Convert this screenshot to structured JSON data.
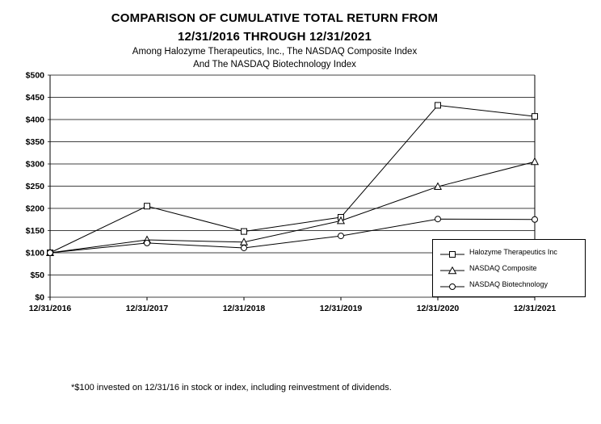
{
  "title": {
    "line1": "COMPARISON OF CUMULATIVE TOTAL RETURN FROM",
    "line2": "12/31/2016 THROUGH 12/31/2021",
    "line3": "Among Halozyme Therapeutics, Inc., The NASDAQ Composite Index",
    "line4": "And The NASDAQ Biotechnology Index"
  },
  "footnote": "*$100 invested on 12/31/16 in stock or index, including reinvestment of dividends.",
  "chart_data": {
    "type": "line",
    "categories": [
      "12/31/2016",
      "12/31/2017",
      "12/31/2018",
      "12/31/2019",
      "12/31/2020",
      "12/31/2021"
    ],
    "series": [
      {
        "name": "Halozyme Therapeutics Inc",
        "marker": "square",
        "values": [
          100,
          205,
          148,
          180,
          432,
          407
        ]
      },
      {
        "name": "NASDAQ Composite",
        "marker": "triangle",
        "values": [
          100,
          129,
          124,
          172,
          249,
          305
        ]
      },
      {
        "name": "NASDAQ Biotechnology",
        "marker": "circle",
        "values": [
          100,
          122,
          111,
          138,
          176,
          175
        ]
      }
    ],
    "ylim": [
      0,
      500
    ],
    "ytick_step": 50,
    "ytick_prefix": "$",
    "grid": true,
    "legend_position": "bottom-right",
    "line_color": "#000000",
    "marker_fill": "#ffffff"
  }
}
